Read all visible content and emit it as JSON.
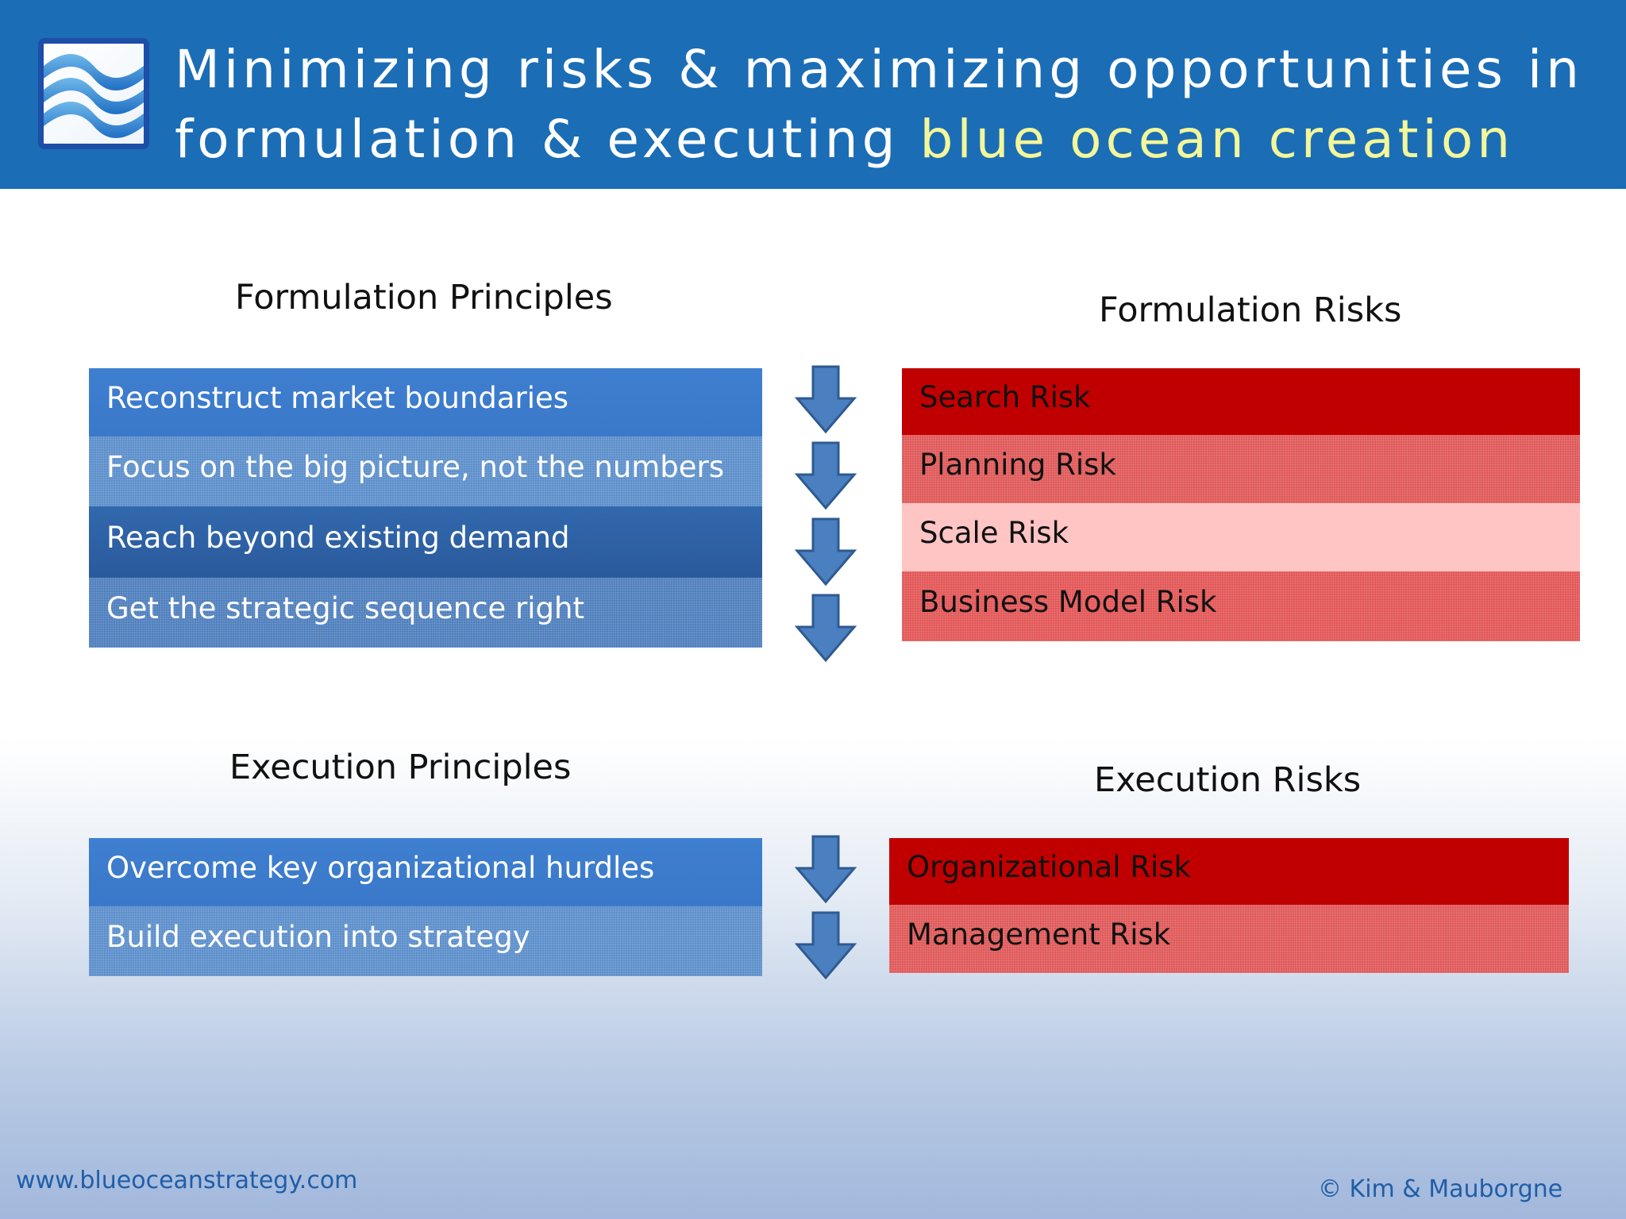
{
  "header": {
    "title_line1": "Minimizing risks & maximizing opportunities in",
    "title_line2_prefix": "formulation & executing ",
    "title_line2_accent": "blue ocean creation",
    "logo_icon": "ocean-waves-icon",
    "colors": {
      "background": "#1b6db6",
      "text": "#ffffff",
      "accent": "#f3f79a"
    }
  },
  "formulation": {
    "principles_heading": "Formulation Principles",
    "risks_heading": "Formulation Risks",
    "principles": [
      "Reconstruct market boundaries",
      "Focus on the big picture, not the numbers",
      "Reach beyond existing demand",
      "Get the strategic sequence right"
    ],
    "risks": [
      "Search Risk",
      "Planning Risk",
      "Scale Risk",
      "Business Model Risk"
    ]
  },
  "execution": {
    "principles_heading": "Execution Principles",
    "risks_heading": "Execution Risks",
    "principles": [
      "Overcome key organizational hurdles",
      "Build execution into strategy"
    ],
    "risks": [
      "Organizational Risk",
      "Management Risk"
    ]
  },
  "arrow_icon": "down-arrow-icon",
  "colors": {
    "principle_blue": "#3f7fd0",
    "risk_red": "#c00000",
    "risk_light": "#ffc4c4",
    "footer_text": "#1f5ea8"
  },
  "footer": {
    "website": "www.blueoceanstrategy.com",
    "copyright": "© Kim & Mauborgne"
  }
}
